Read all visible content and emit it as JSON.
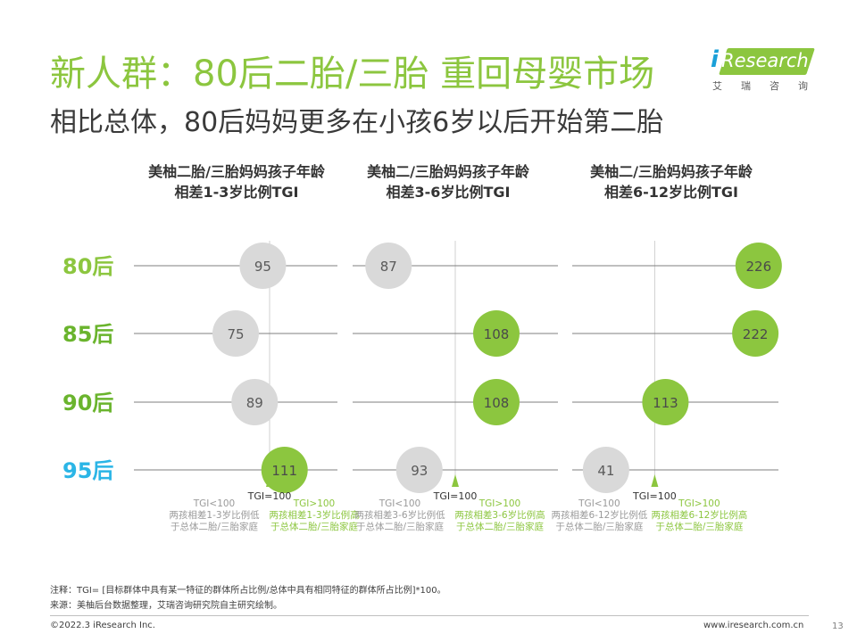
{
  "title": "新人群：80后二胎/三胎 重回母婴市场",
  "subtitle": "相比总体，80后妈妈更多在小孩6岁以后开始第二胎",
  "logo": {
    "brand_i": "i",
    "brand_word": "Research",
    "brand_cn": "艾瑞咨询"
  },
  "colors": {
    "accent_green": "#8cc63f",
    "grey_bubble": "#d9d9d9",
    "row_80": "#8cc63f",
    "row_85": "#6ab42d",
    "row_90": "#6ab42d",
    "row_95": "#2bb5e6",
    "axis": "#7f7f7f"
  },
  "chart_data": {
    "type": "scatter",
    "rows": [
      "80后",
      "85后",
      "90后",
      "95后"
    ],
    "baseline": 100,
    "baseline_label": "TGI=100",
    "legend_low": [
      "TGI<100"
    ],
    "legend_high": [
      "TGI>100"
    ],
    "panels": [
      {
        "title": [
          "美柚二胎/三胎妈妈孩子年龄",
          "相差1-3岁比例TGI"
        ],
        "xlim": [
          0,
          150
        ],
        "values": [
          95,
          75,
          89,
          111
        ],
        "legend_low_desc": [
          "两孩相差1-3岁比例低",
          "于总体二胎/三胎家庭"
        ],
        "legend_high_desc": [
          "两孩相差1-3岁比例高",
          "于总体二胎/三胎家庭"
        ]
      },
      {
        "title": [
          "美柚二/三胎妈妈孩子年龄",
          "相差3-6岁比例TGI"
        ],
        "xlim": [
          80,
          120
        ],
        "values": [
          87,
          108,
          108,
          93
        ],
        "legend_low_desc": [
          "两孩相差3-6岁比例低",
          "于总体二胎/三胎家庭"
        ],
        "legend_high_desc": [
          "两孩相差3-6岁比例高",
          "于总体二胎/三胎家庭"
        ]
      },
      {
        "title": [
          "美柚二/三胎妈妈孩子年龄",
          "相差6-12岁比例TGI"
        ],
        "xlim": [
          0,
          250
        ],
        "values": [
          226,
          222,
          113,
          41
        ],
        "legend_low_desc": [
          "两孩相差6-12岁比例低",
          "于总体二胎/三胎家庭"
        ],
        "legend_high_desc": [
          "两孩相差6-12岁比例高",
          "于总体二胎/三胎家庭"
        ]
      }
    ]
  },
  "notes": {
    "note1": "注释：TGI= [目标群体中具有某一特征的群体所占比例/总体中具有相同特征的群体所占比例]*100。",
    "note2": "来源：美柚后台数据整理，艾瑞咨询研究院自主研究绘制。"
  },
  "footer": {
    "copyright": "©2022.3 iResearch Inc.",
    "site": "www.iresearch.com.cn",
    "page": "13"
  }
}
